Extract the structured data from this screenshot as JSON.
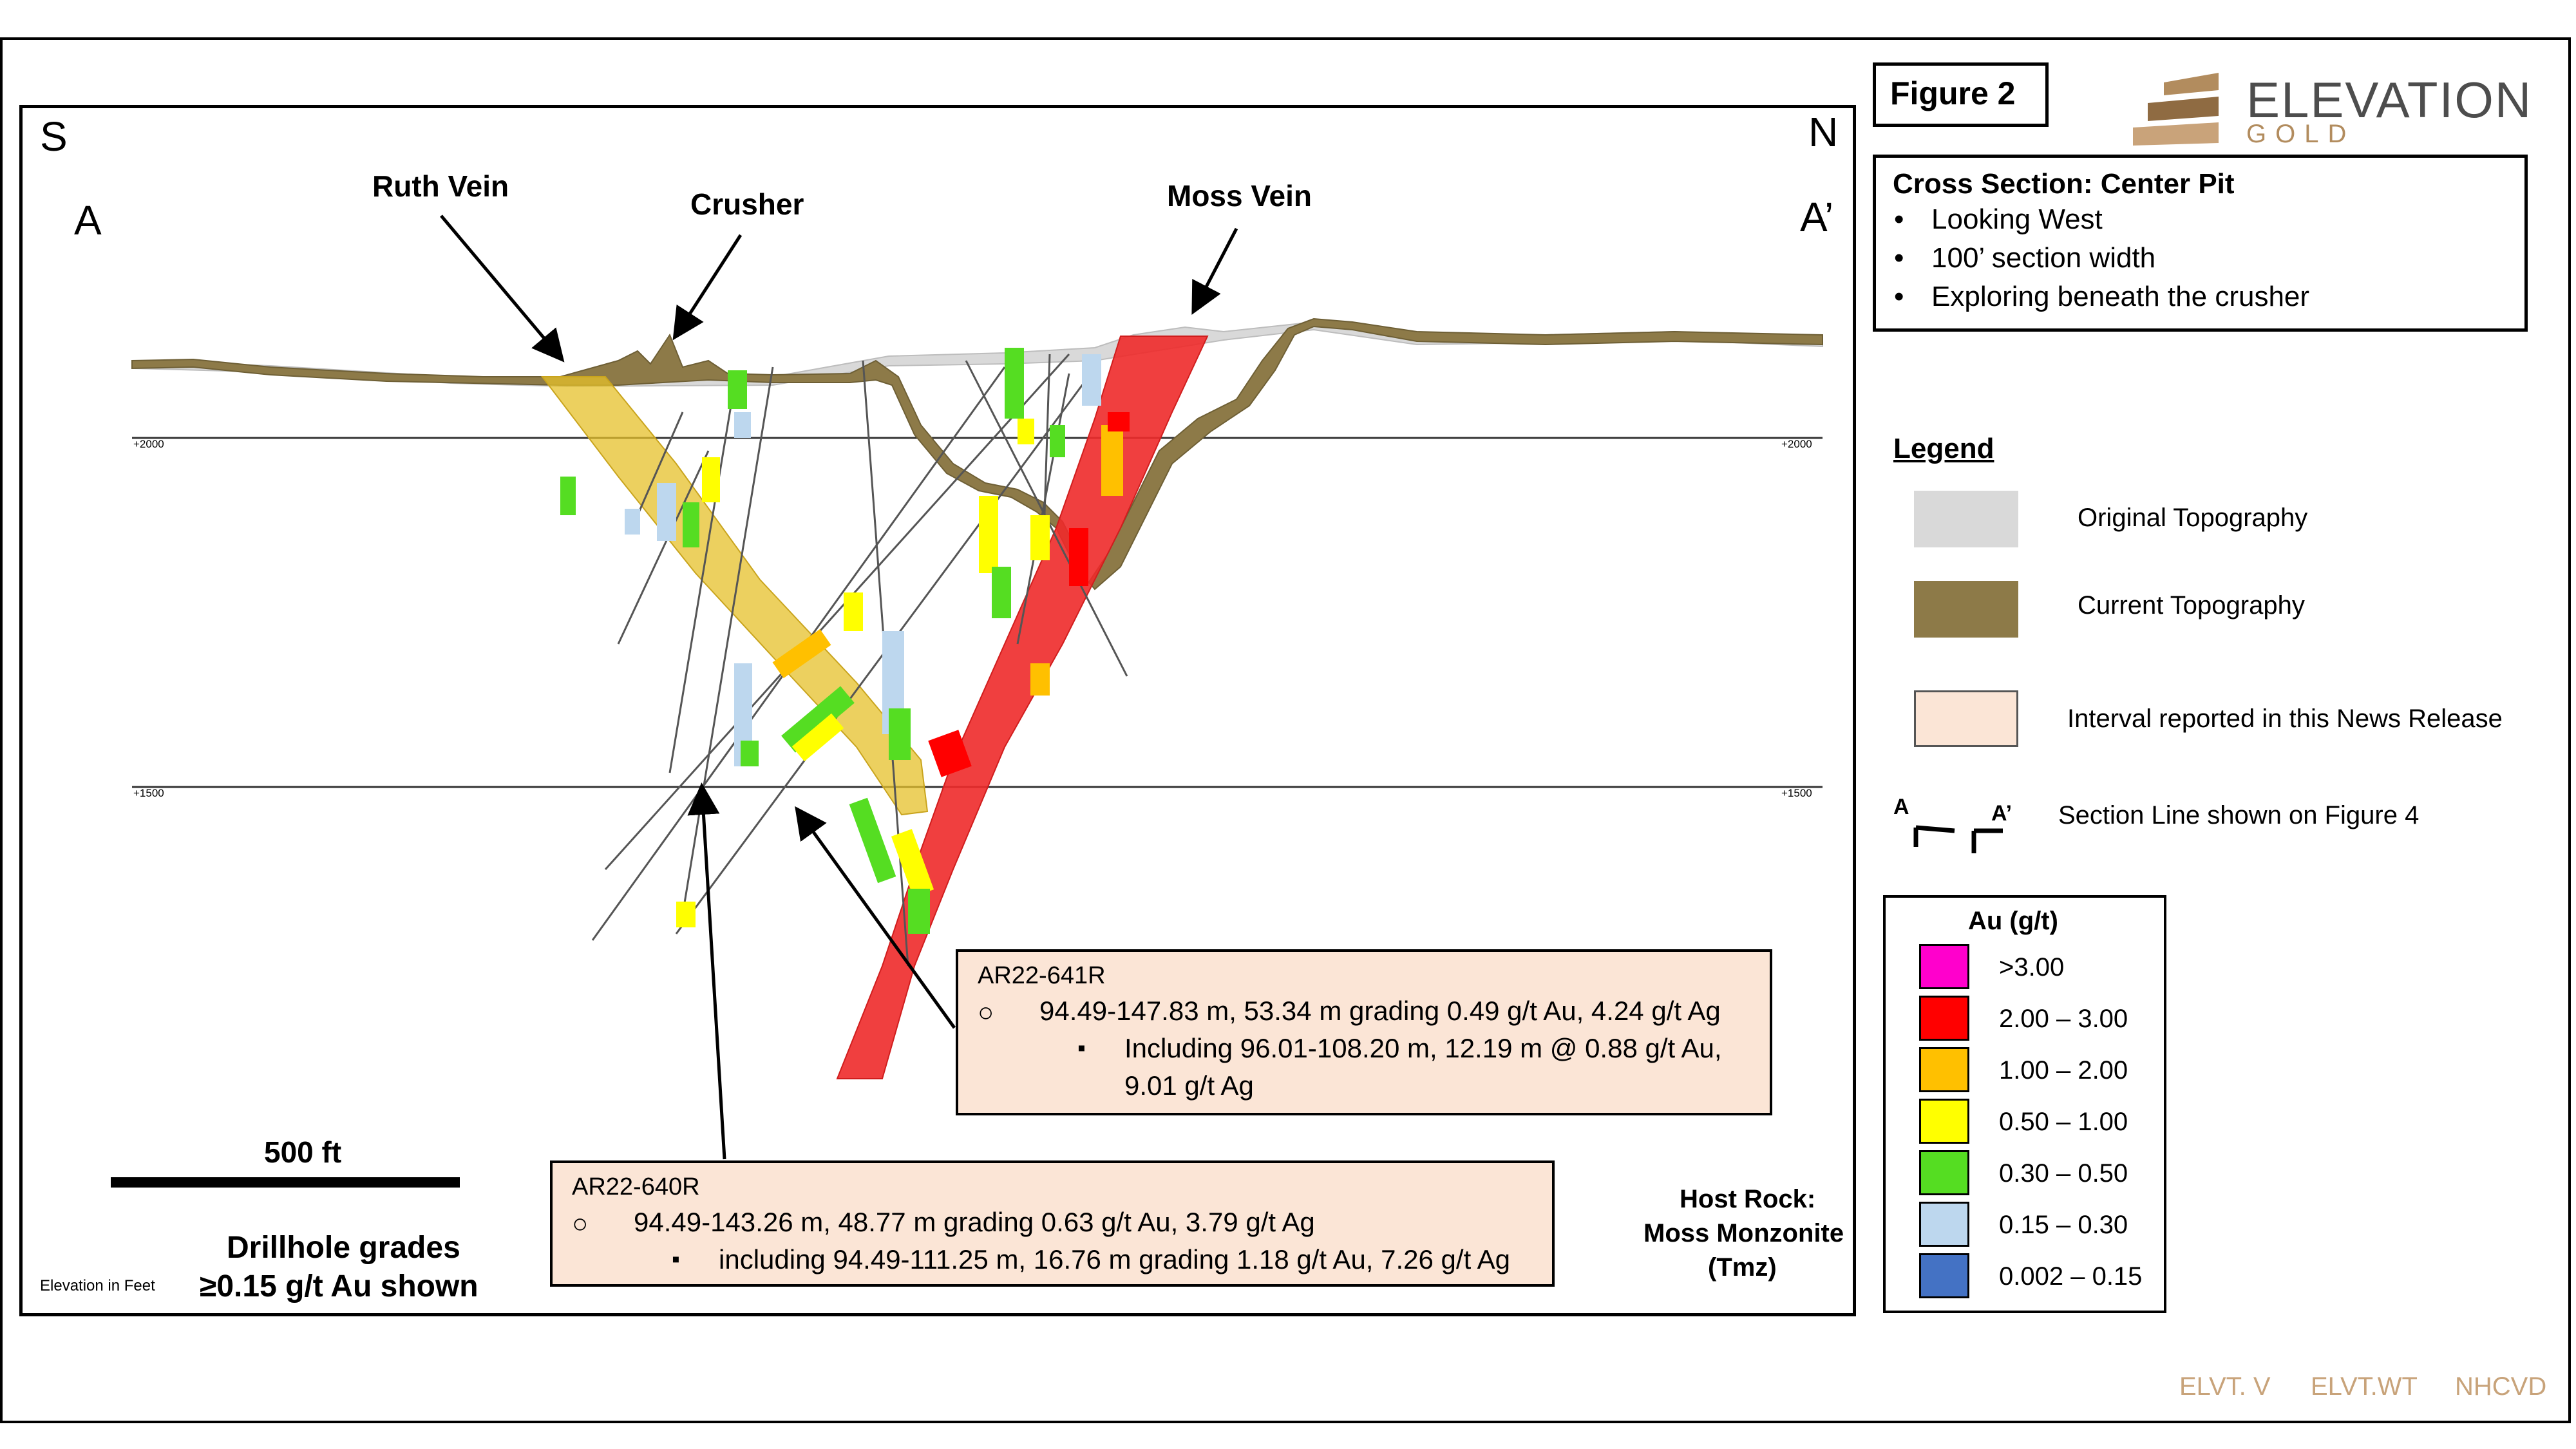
{
  "figure_label": "Figure 2",
  "logo": {
    "name": "ELEVATION",
    "sub": "GOLD",
    "color": "#b28c5e"
  },
  "info": {
    "title": "Cross Section: Center Pit",
    "bullets": [
      "Looking West",
      "100’ section width",
      "Exploring beneath the crusher"
    ]
  },
  "section": {
    "dir_left": "S",
    "dir_right": "N",
    "section_left": "A",
    "section_right": "A’",
    "labels": {
      "ruth_vein": "Ruth Vein",
      "crusher": "Crusher",
      "moss_vein": "Moss Vein"
    },
    "elev_lines": {
      "upper_left": "+2000",
      "upper_right": "+2000",
      "lower_left": "+1500",
      "lower_right": "+1500"
    },
    "scale_label": "500 ft",
    "drillhole_note_1": "Drillhole grades",
    "drillhole_note_2": "≥0.15 g/t Au shown",
    "elevation_note": "Elevation in Feet",
    "host_rock_1": "Host Rock:",
    "host_rock_2": "Moss Monzonite",
    "host_rock_3": "(Tmz)",
    "colors": {
      "ruth_vein": "#e6c02a",
      "moss_vein": "#ee2a2a",
      "current_topo": "#8d7a48",
      "original_topo": "#d3d3d3"
    }
  },
  "callouts": [
    {
      "hole": "AR22-641R",
      "bullet1_mark": "○",
      "line1": "94.49-147.83 m, 53.34 m grading 0.49 g/t Au, 4.24 g/t Ag",
      "bullet2_mark": "▪",
      "line2": "Including 96.01-108.20 m, 12.19 m @ 0.88 g/t Au,",
      "line3": "9.01 g/t Ag"
    },
    {
      "hole": "AR22-640R",
      "bullet1_mark": "○",
      "line1": "94.49-143.26 m, 48.77 m grading 0.63 g/t Au, 3.79 g/t Ag",
      "bullet2_mark": "▪",
      "line2": "including 94.49-111.25 m, 16.76 m grading 1.18 g/t Au, 7.26 g/t Ag"
    }
  ],
  "legend": {
    "title": "Legend",
    "items": [
      {
        "label": "Original Topography",
        "color": "#d9d9d9"
      },
      {
        "label": "Current Topography",
        "color": "#8d7a48"
      },
      {
        "label": "Interval reported in this News Release",
        "color": "#fbe5d6"
      }
    ],
    "section_line_a": "A",
    "section_line_a2": "A’",
    "section_line_label": "Section Line shown on Figure 4"
  },
  "au_scale": {
    "title": "Au (g/t)",
    "bins": [
      {
        "label": ">3.00",
        "color": "#ff00cc"
      },
      {
        "label": "2.00 – 3.00",
        "color": "#ff0000"
      },
      {
        "label": "1.00 – 2.00",
        "color": "#ffc000"
      },
      {
        "label": "0.50 – 1.00",
        "color": "#ffff00"
      },
      {
        "label": "0.30 – 0.50",
        "color": "#55dd22"
      },
      {
        "label": "0.15 – 0.30",
        "color": "#bdd7ee"
      },
      {
        "label": "0.002 – 0.15",
        "color": "#4472c4"
      }
    ]
  },
  "tickers": [
    "ELVT. V",
    "ELVT.WT",
    "NHCVD"
  ]
}
